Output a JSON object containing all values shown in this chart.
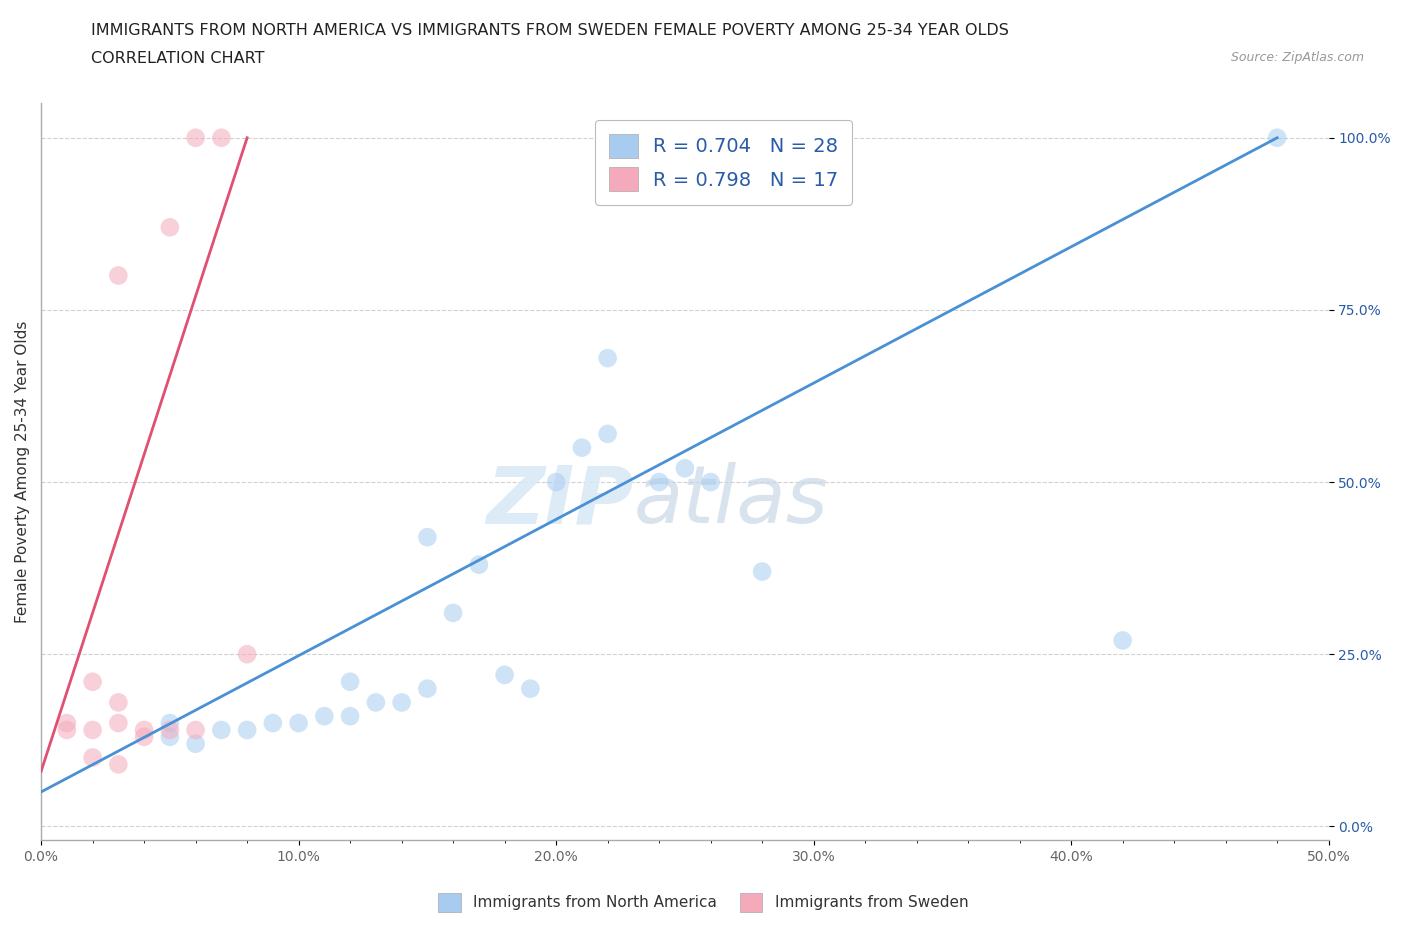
{
  "title_line1": "IMMIGRANTS FROM NORTH AMERICA VS IMMIGRANTS FROM SWEDEN FEMALE POVERTY AMONG 25-34 YEAR OLDS",
  "title_line2": "CORRELATION CHART",
  "source": "Source: ZipAtlas.com",
  "ylabel": "Female Poverty Among 25-34 Year Olds",
  "xlim": [
    0.0,
    50.0
  ],
  "ylim": [
    -2.0,
    105.0
  ],
  "x_ticks": [
    0.0,
    10.0,
    20.0,
    30.0,
    40.0,
    50.0
  ],
  "x_tick_labels": [
    "0.0%",
    "10.0%",
    "20.0%",
    "30.0%",
    "40.0%",
    "50.0%"
  ],
  "y_ticks": [
    0.0,
    25.0,
    50.0,
    75.0,
    100.0
  ],
  "y_tick_labels": [
    "0.0%",
    "25.0%",
    "50.0%",
    "75.0%",
    "100.0%"
  ],
  "blue_scatter_x": [
    17.0,
    22.0,
    22.0,
    5.0,
    5.0,
    6.0,
    7.0,
    8.0,
    9.0,
    10.0,
    11.0,
    12.0,
    12.0,
    13.0,
    14.0,
    15.0,
    16.0,
    18.0,
    19.0,
    20.0,
    21.0,
    24.0,
    25.0,
    26.0,
    15.0,
    28.0,
    42.0,
    48.0
  ],
  "blue_scatter_y": [
    38.0,
    57.0,
    68.0,
    15.0,
    13.0,
    12.0,
    14.0,
    14.0,
    15.0,
    15.0,
    16.0,
    16.0,
    21.0,
    18.0,
    18.0,
    20.0,
    31.0,
    22.0,
    20.0,
    50.0,
    55.0,
    50.0,
    52.0,
    50.0,
    42.0,
    37.0,
    27.0,
    100.0
  ],
  "pink_scatter_x": [
    1.0,
    1.0,
    2.0,
    3.0,
    4.0,
    5.0,
    5.0,
    2.0,
    3.0,
    3.0,
    4.0,
    6.0,
    2.0,
    3.0,
    6.0,
    7.0,
    8.0
  ],
  "pink_scatter_y": [
    15.0,
    14.0,
    14.0,
    15.0,
    14.0,
    14.0,
    87.0,
    21.0,
    18.0,
    80.0,
    13.0,
    14.0,
    10.0,
    9.0,
    100.0,
    100.0,
    25.0
  ],
  "blue_line_x": [
    0.0,
    48.0
  ],
  "blue_line_y": [
    5.0,
    100.0
  ],
  "pink_line_x": [
    0.0,
    8.0
  ],
  "pink_line_y": [
    8.0,
    100.0
  ],
  "blue_color": "#A8CCF0",
  "pink_color": "#F4AABB",
  "blue_line_color": "#4A90D4",
  "pink_line_color": "#E05070",
  "R_blue": 0.704,
  "N_blue": 28,
  "R_pink": 0.798,
  "N_pink": 17,
  "legend_text_color": "#2A5BA8",
  "watermark_zip": "ZIP",
  "watermark_atlas": "atlas",
  "scatter_size": 180,
  "scatter_alpha": 0.55,
  "background_color": "#FFFFFF",
  "grid_color": "#CCCCCC",
  "title_fontsize": 11.5,
  "axis_label_fontsize": 11,
  "tick_label_fontsize": 10
}
